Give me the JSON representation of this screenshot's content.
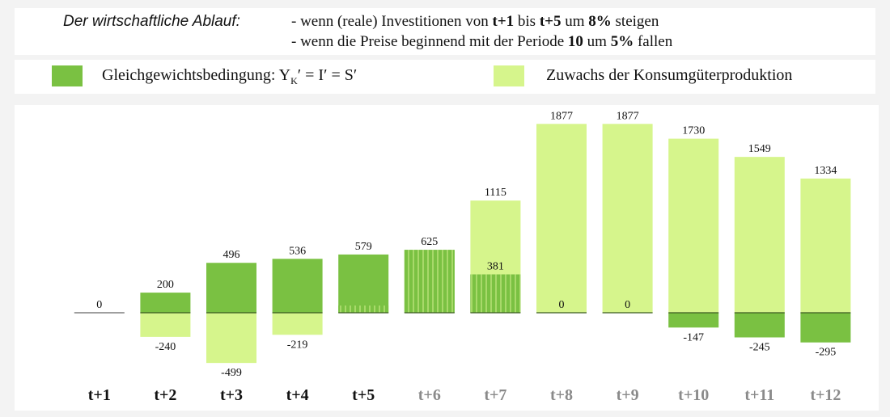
{
  "header": {
    "title": "Der wirtschaftliche Ablauf:",
    "line1": {
      "pre": "- wenn (reale) Investitionen von ",
      "b1": "t+1",
      "m1": " bis ",
      "b2": "t+5",
      "m2": " um ",
      "b3": "8%",
      "post": " steigen"
    },
    "line2": {
      "pre": "- wenn die Preise beginnend mit der Periode ",
      "b1": "10",
      "m1": " um ",
      "b2": "5%",
      "post": " fallen"
    }
  },
  "legend": {
    "dark": {
      "label_pre": "Gleichgewichtsbedingung:  Y",
      "label_sub": "K",
      "label_post": "′ = I′ = S′",
      "color": "#7ac142"
    },
    "light": {
      "label": "Zuwachs der Konsumgüterproduktion",
      "color": "#d6f58c"
    }
  },
  "chart_data": {
    "type": "bar",
    "categories": [
      "t+1",
      "t+2",
      "t+3",
      "t+4",
      "t+5",
      "t+6",
      "t+7",
      "t+8",
      "t+9",
      "t+10",
      "t+11",
      "t+12"
    ],
    "series": [
      {
        "name": "Gleichgewichtsbedingung",
        "color": "#7ac142",
        "values": [
          0,
          200,
          496,
          536,
          579,
          625,
          381,
          0,
          0,
          -147,
          -245,
          -295
        ]
      },
      {
        "name": "Zuwachs der Konsumgüterproduktion",
        "color": "#d6f58c",
        "values": [
          0,
          -240,
          -499,
          -219,
          null,
          null,
          1115,
          1877,
          1877,
          1730,
          1549,
          1334
        ]
      }
    ],
    "data_labels": [
      {
        "cat": 0,
        "text": "0",
        "value": 0
      },
      {
        "cat": 1,
        "text": "200",
        "value": 200
      },
      {
        "cat": 1,
        "text": "-240",
        "value": -240
      },
      {
        "cat": 2,
        "text": "496",
        "value": 496
      },
      {
        "cat": 2,
        "text": "-499",
        "value": -499
      },
      {
        "cat": 3,
        "text": "536",
        "value": 536
      },
      {
        "cat": 3,
        "text": "-219",
        "value": -219
      },
      {
        "cat": 4,
        "text": "579",
        "value": 579
      },
      {
        "cat": 5,
        "text": "625",
        "value": 625
      },
      {
        "cat": 6,
        "text": "1115",
        "value": 1115
      },
      {
        "cat": 6,
        "text": "381",
        "value": 381,
        "inside": true
      },
      {
        "cat": 7,
        "text": "1877",
        "value": 1877
      },
      {
        "cat": 7,
        "text": "0",
        "value": 0,
        "inside": true
      },
      {
        "cat": 8,
        "text": "1877",
        "value": 1877
      },
      {
        "cat": 8,
        "text": "0",
        "value": 0,
        "inside": true
      },
      {
        "cat": 9,
        "text": "1730",
        "value": 1730
      },
      {
        "cat": 9,
        "text": "-147",
        "value": -147
      },
      {
        "cat": 10,
        "text": "1549",
        "value": 1549
      },
      {
        "cat": 10,
        "text": "-245",
        "value": -245
      },
      {
        "cat": 11,
        "text": "1334",
        "value": 1334
      },
      {
        "cat": 11,
        "text": "-295",
        "value": -295
      }
    ],
    "striped_overlay": [
      {
        "cat": 4,
        "value": 72
      },
      {
        "cat": 5,
        "value": 625
      },
      {
        "cat": 6,
        "value": 381
      }
    ],
    "category_label_colors": {
      "active": "#111111",
      "inactive": "#8a8a8a",
      "active_count": 5
    },
    "ylim": [
      -560,
      1900
    ],
    "grid": false,
    "legend_position": "top"
  }
}
